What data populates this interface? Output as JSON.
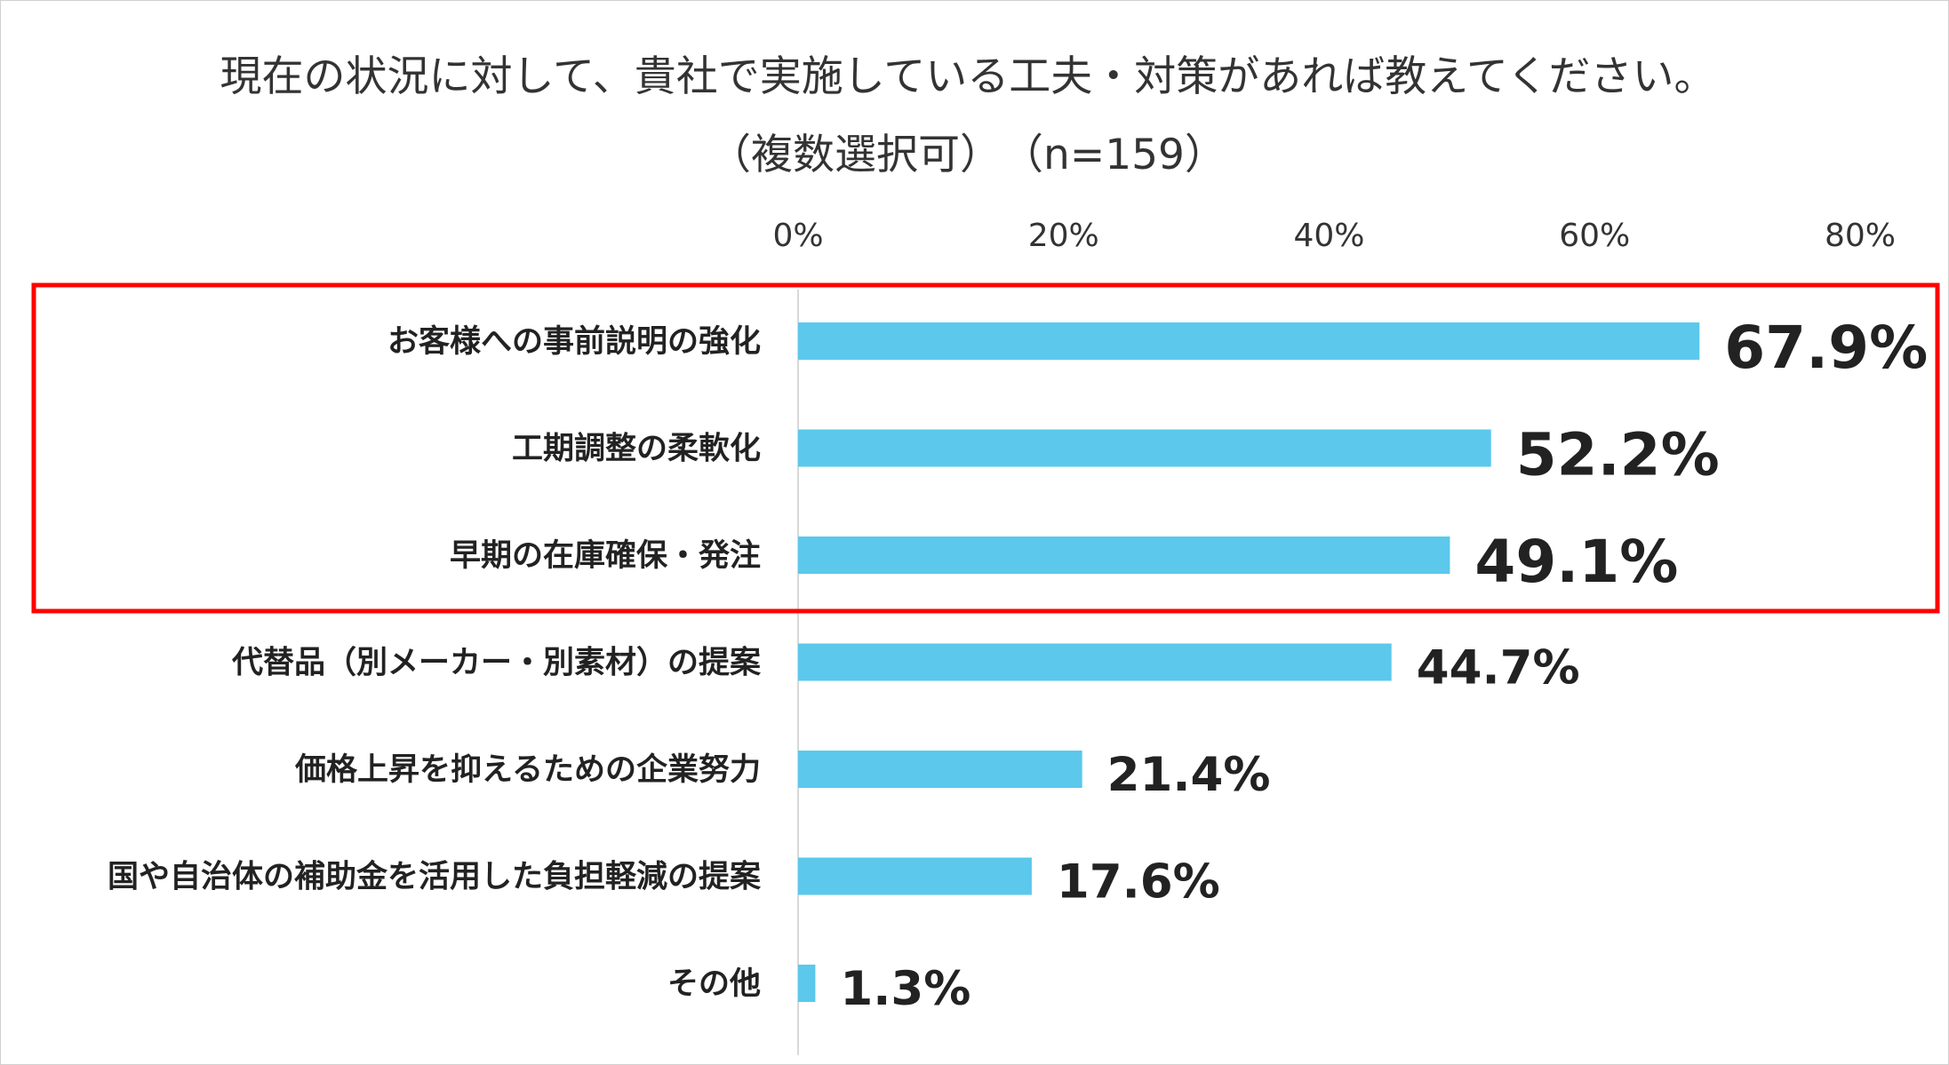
{
  "chart_data": {
    "type": "bar",
    "orientation": "horizontal",
    "title": "現在の状況に対して、貴社で実施している工夫・対策があれば教えてください。",
    "subtitle": "（複数選択可）　（n=159）",
    "categories": [
      "お客様への事前説明の強化",
      "工期調整の柔軟化",
      "早期の在庫確保・発注",
      "代替品（別メーカー・別素材）の提案",
      "価格上昇を抑えるための企業努力",
      "国や自治体の補助金を活用した負担軽減の提案",
      "その他"
    ],
    "values": [
      67.9,
      52.2,
      49.1,
      44.7,
      21.4,
      17.6,
      1.3
    ],
    "value_labels": [
      "67.9%",
      "52.2%",
      "49.1%",
      "44.7%",
      "21.4%",
      "17.6%",
      "1.3%"
    ],
    "xlim": [
      0,
      80
    ],
    "x_ticks": [
      0,
      20,
      40,
      60,
      80
    ],
    "x_tick_labels": [
      "0%",
      "20%",
      "40%",
      "60%",
      "80%"
    ],
    "x_axis_position": "top",
    "grid": false,
    "bar_color": "#5BC8EC",
    "highlight": {
      "categories": [
        0,
        1,
        2
      ],
      "color": "#FF0000"
    }
  }
}
